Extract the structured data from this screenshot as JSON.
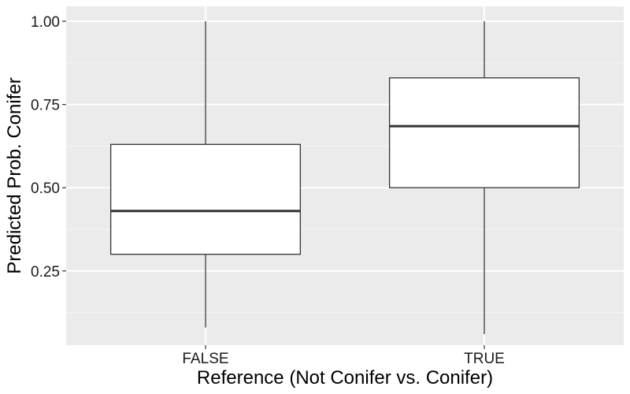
{
  "chart_data": {
    "type": "box",
    "xlabel": "Reference (Not Conifer vs. Conifer)",
    "ylabel": "Predicted Prob. Conifer",
    "categories": [
      "FALSE",
      "TRUE"
    ],
    "boxes": [
      {
        "category": "FALSE",
        "min": 0.08,
        "q1": 0.3,
        "median": 0.43,
        "q3": 0.63,
        "max": 1.0
      },
      {
        "category": "TRUE",
        "min": 0.06,
        "q1": 0.5,
        "median": 0.685,
        "q3": 0.83,
        "max": 1.0
      }
    ],
    "y_ticks": [
      0.25,
      0.5,
      0.75,
      1.0
    ],
    "y_tick_labels": [
      "0.25",
      "0.50",
      "0.75",
      "1.00"
    ],
    "ylim": [
      0.027,
      1.045
    ],
    "grid": true,
    "colors": {
      "panel_bg": "#ebebeb",
      "grid_major": "#ffffff",
      "grid_minor": "#f5f5f5",
      "box_fill": "#ffffff",
      "box_stroke": "#333333"
    }
  }
}
